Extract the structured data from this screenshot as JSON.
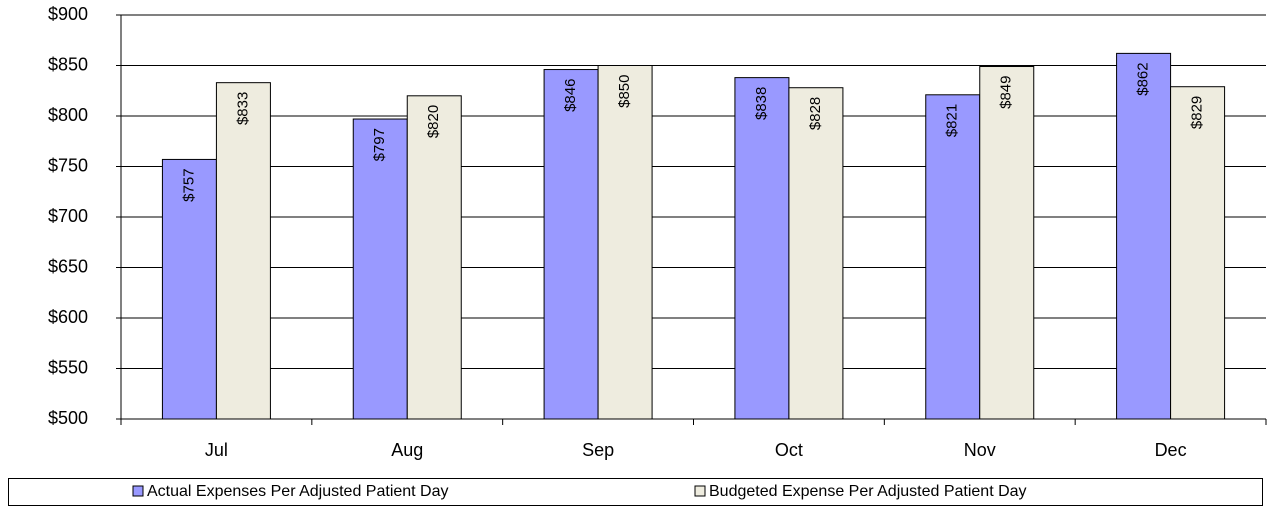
{
  "chart_data": {
    "type": "bar",
    "categories": [
      "Jul",
      "Aug",
      "Sep",
      "Oct",
      "Nov",
      "Dec"
    ],
    "series": [
      {
        "name": "Actual Expenses Per Adjusted Patient Day",
        "color": "#9999ff",
        "values": [
          757,
          797,
          846,
          838,
          821,
          862
        ],
        "value_labels": [
          "$757",
          "$797",
          "$846",
          "$838",
          "$821",
          "$862"
        ]
      },
      {
        "name": "Budgeted Expense Per Adjusted Patient Day",
        "color": "#eeecdf",
        "values": [
          833,
          820,
          850,
          828,
          849,
          829
        ],
        "value_labels": [
          "$833",
          "$820",
          "$850",
          "$828",
          "$849",
          "$829"
        ]
      }
    ],
    "ylim": [
      500,
      900
    ],
    "yticks": [
      {
        "value": 500,
        "label": "$500"
      },
      {
        "value": 550,
        "label": "$550"
      },
      {
        "value": 600,
        "label": "$600"
      },
      {
        "value": 650,
        "label": "$650"
      },
      {
        "value": 700,
        "label": "$700"
      },
      {
        "value": 750,
        "label": "$750"
      },
      {
        "value": 800,
        "label": "$800"
      },
      {
        "value": 850,
        "label": "$850"
      },
      {
        "value": 900,
        "label": "$900"
      }
    ],
    "grid": true,
    "legend": "bottom"
  }
}
